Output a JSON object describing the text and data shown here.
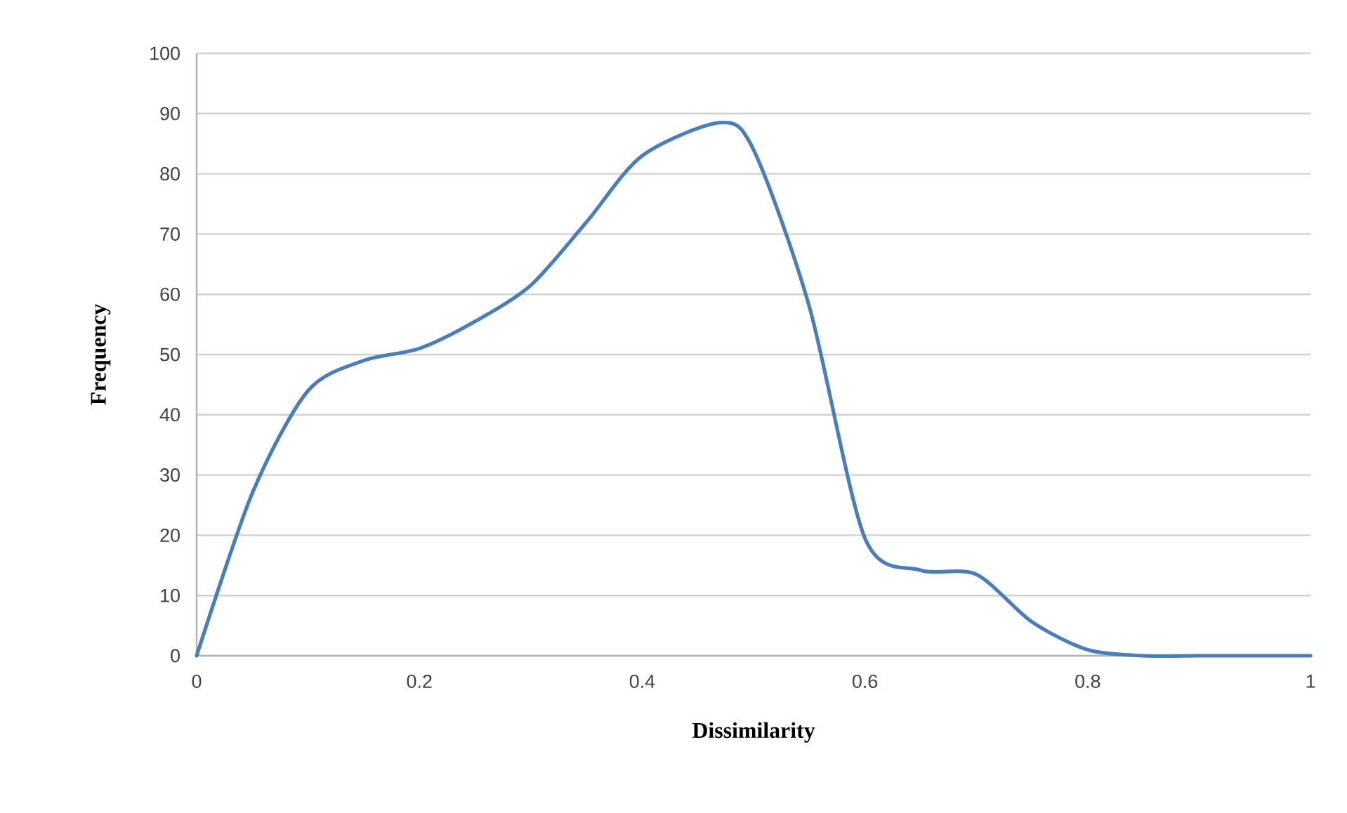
{
  "chart_data": {
    "type": "line",
    "xlabel": "Dissimilarity",
    "ylabel": "Frequency",
    "x": [
      0,
      0.05,
      0.1,
      0.15,
      0.2,
      0.25,
      0.3,
      0.35,
      0.4,
      0.47,
      0.5,
      0.55,
      0.6,
      0.65,
      0.7,
      0.75,
      0.8,
      0.85,
      0.9,
      1
    ],
    "series": [
      {
        "color": "#4a7ebb",
        "values": [
          0,
          27,
          44,
          49,
          51,
          55.5,
          61.5,
          72,
          83,
          88.5,
          84,
          58,
          19.5,
          14.2,
          13.5,
          5.6,
          1,
          0,
          0,
          0
        ]
      }
    ],
    "xlim": [
      0,
      1
    ],
    "ylim": [
      0,
      100
    ],
    "xticks": [
      0,
      0.2,
      0.4,
      0.6,
      0.8,
      1
    ],
    "yticks": [
      0,
      10,
      20,
      30,
      40,
      50,
      60,
      70,
      80,
      90,
      100
    ],
    "grid": "y",
    "marker": "none",
    "line_style": "solid"
  }
}
